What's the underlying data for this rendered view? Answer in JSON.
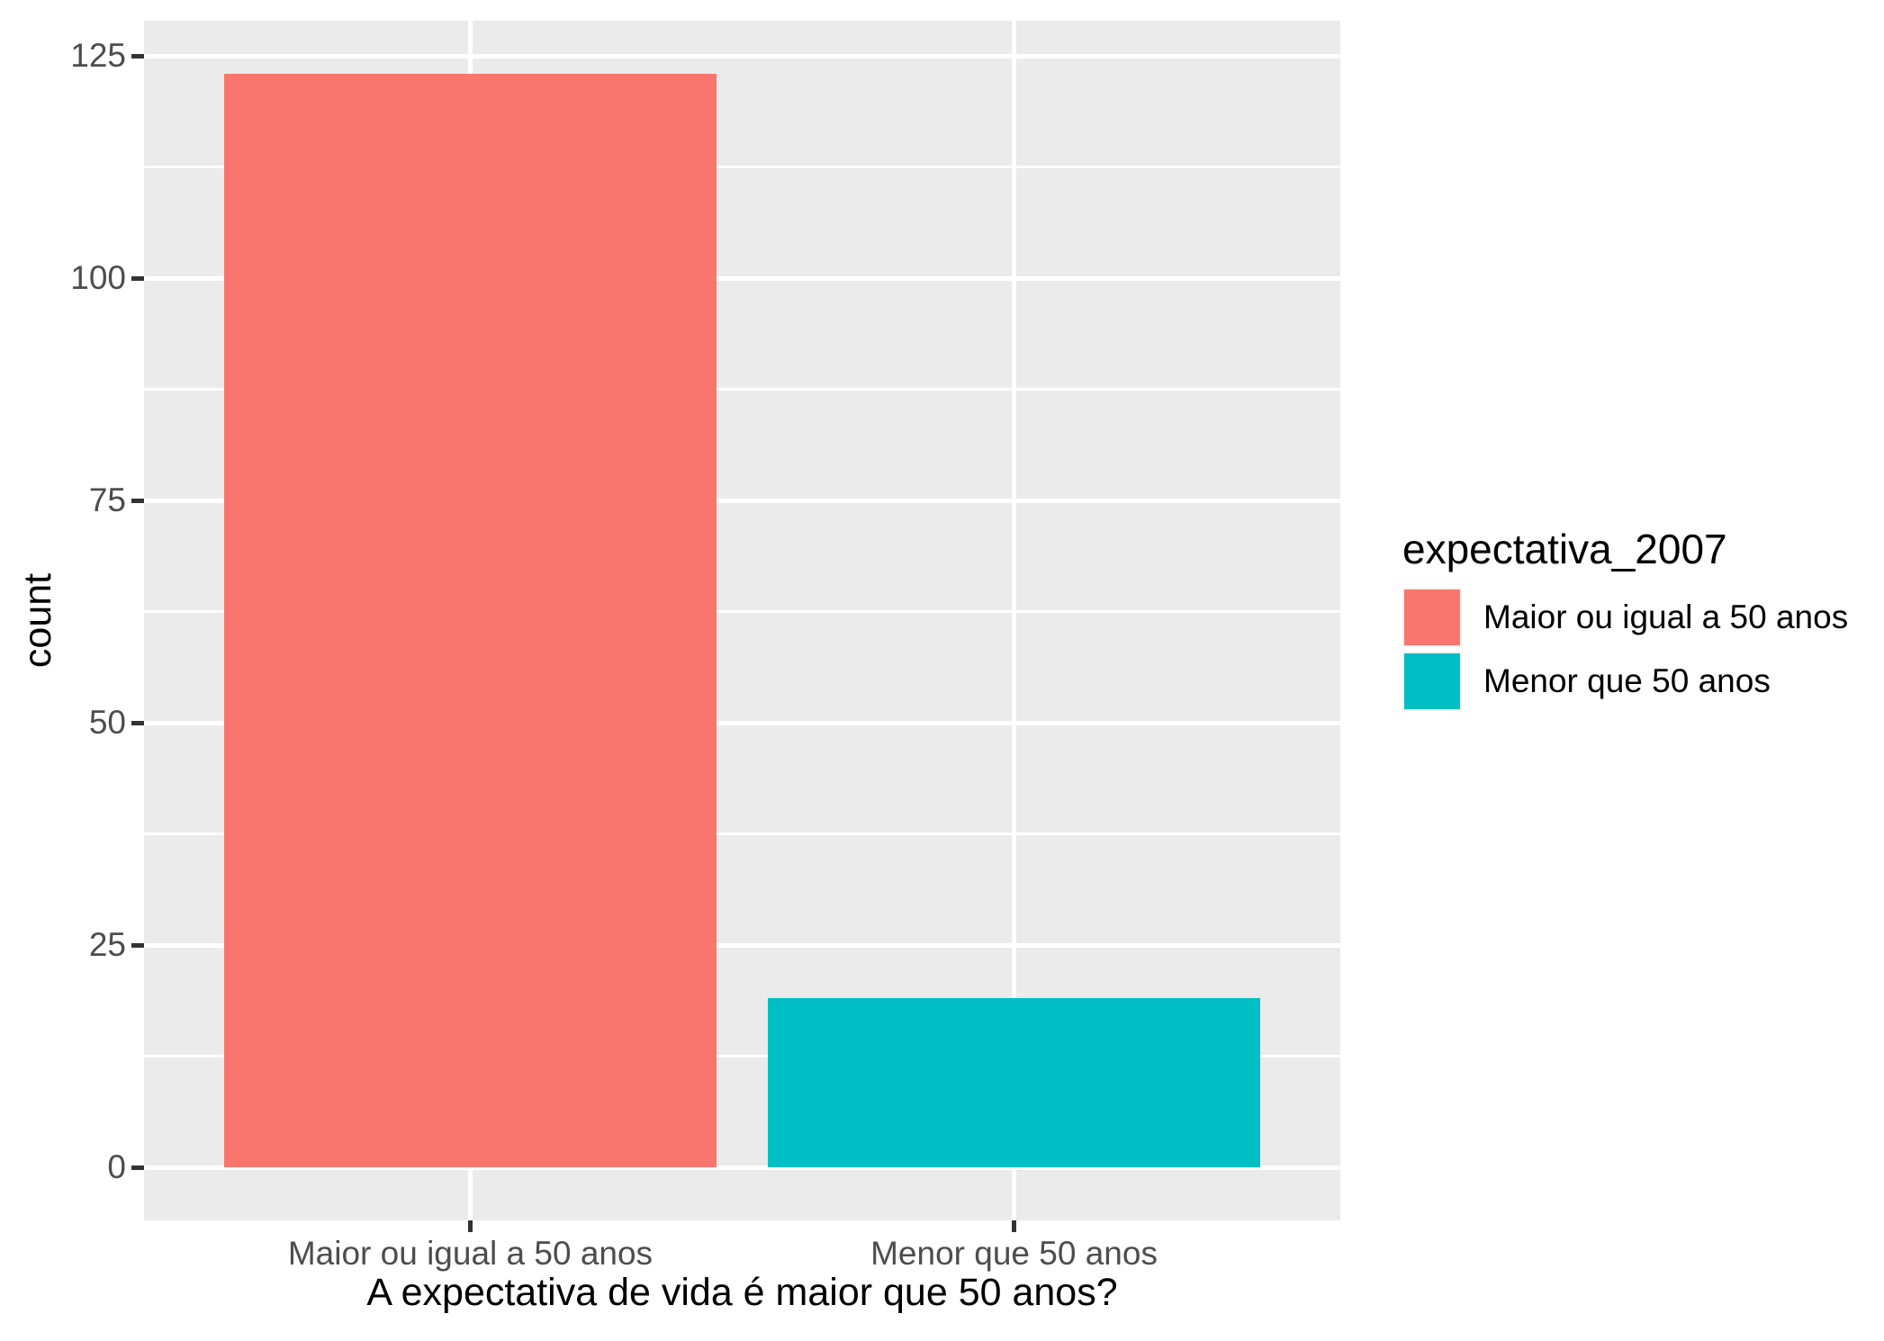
{
  "chart_data": {
    "type": "bar",
    "title": "",
    "xlabel": "A expectativa de vida é maior que 50 anos?",
    "ylabel": "count",
    "categories": [
      "Maior ou igual a 50 anos",
      "Menor que 50 anos"
    ],
    "values": [
      123,
      19
    ],
    "bar_colors": [
      "#F8766D",
      "#00BFC4"
    ],
    "ylim": [
      0,
      125
    ],
    "y_ticks": [
      0,
      25,
      50,
      75,
      100,
      125
    ],
    "y_minor_ticks": [
      12.5,
      37.5,
      62.5,
      87.5,
      112.5
    ],
    "grid": "white major and minor horizontal lines plus vertical lines at category centers, on gray panel",
    "legend": {
      "title": "expectativa_2007",
      "position": "right",
      "entries": [
        {
          "label": "Maior ou igual a 50 anos",
          "color": "#F8766D"
        },
        {
          "label": "Menor que 50 anos",
          "color": "#00BFC4"
        }
      ]
    },
    "colors": {
      "panel_bg": "#EBEBEB",
      "grid": "#FFFFFF",
      "axis_text": "#4D4D4D",
      "axis_title": "#000000",
      "tick_mark": "#333333",
      "figure_bg": "#FFFFFF",
      "legend_key_bg": "#F2F2F2",
      "legend_text": "#000000"
    }
  }
}
